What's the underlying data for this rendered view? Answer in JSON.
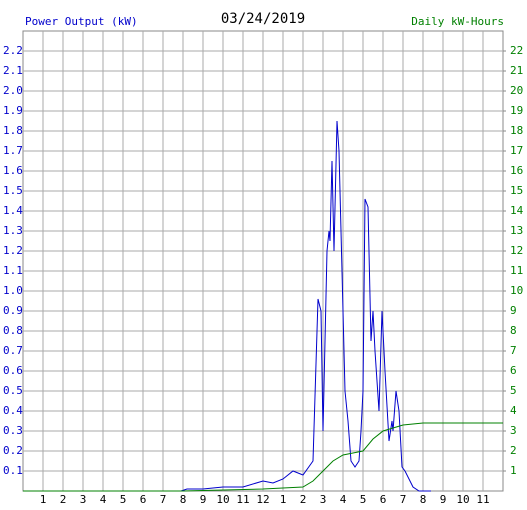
{
  "chart_data": {
    "type": "line",
    "title": "03/24/2019",
    "y_label": "Power Output (kW)",
    "y2_label": "Daily kW-Hours",
    "xlim": [
      0,
      24
    ],
    "xticks": [
      1,
      2,
      3,
      4,
      5,
      6,
      7,
      8,
      9,
      10,
      11,
      12,
      {
        "value": 13,
        "label": "1"
      },
      {
        "value": 14,
        "label": "2"
      },
      {
        "value": 15,
        "label": "3"
      },
      {
        "value": 16,
        "label": "4"
      },
      {
        "value": 17,
        "label": "5"
      },
      {
        "value": 18,
        "label": "6"
      },
      {
        "value": 19,
        "label": "7"
      },
      {
        "value": 20,
        "label": "8"
      },
      {
        "value": 21,
        "label": "9"
      },
      {
        "value": 22,
        "label": "10"
      },
      {
        "value": 23,
        "label": "11"
      }
    ],
    "ylim": [
      0,
      2.3
    ],
    "yticks": [
      0.1,
      0.2,
      0.3,
      0.4,
      0.5,
      0.6,
      0.7,
      0.8,
      0.9,
      {
        "value": 1,
        "label": "1.0"
      },
      1.1,
      1.2,
      1.3,
      1.4,
      1.5,
      1.6,
      1.7,
      1.8,
      1.9,
      {
        "value": 2,
        "label": "2.0"
      },
      2.1,
      2.2
    ],
    "y2lim": [
      0,
      23
    ],
    "y2ticks": [
      1,
      2,
      3,
      4,
      5,
      6,
      7,
      8,
      9,
      10,
      11,
      12,
      13,
      14,
      15,
      16,
      17,
      18,
      19,
      20,
      21,
      22
    ],
    "grid": true,
    "series": [
      {
        "color": "#0000cc",
        "x": [
          0,
          7.9,
          8.2,
          9,
          10,
          11,
          12,
          12.5,
          13,
          13.5,
          14,
          14.5,
          14.75,
          14.9,
          15,
          15.2,
          15.3,
          15.35,
          15.45,
          15.55,
          15.7,
          15.8,
          16,
          16.1,
          16.25,
          16.4,
          16.6,
          16.8,
          16.9,
          17,
          17.1,
          17.25,
          17.4,
          17.5,
          17.6,
          17.8,
          17.95,
          18.1,
          18.3,
          18.45,
          18.5,
          18.65,
          18.8,
          18.95,
          19.1,
          19.3,
          19.5,
          19.8,
          20.4
        ],
        "values": [
          0,
          0,
          0.01,
          0.01,
          0.02,
          0.02,
          0.05,
          0.04,
          0.06,
          0.1,
          0.08,
          0.15,
          0.96,
          0.9,
          0.3,
          1.2,
          1.3,
          1.25,
          1.65,
          1.2,
          1.85,
          1.7,
          0.9,
          0.5,
          0.35,
          0.15,
          0.12,
          0.15,
          0.3,
          0.5,
          1.46,
          1.42,
          0.75,
          0.9,
          0.7,
          0.4,
          0.9,
          0.6,
          0.25,
          0.35,
          0.3,
          0.5,
          0.4,
          0.12,
          0.1,
          0.06,
          0.02,
          0,
          0
        ]
      },
      {
        "color": "#008000",
        "axis": "y2",
        "x": [
          0,
          8,
          10,
          12,
          13,
          14,
          14.5,
          15,
          15.5,
          16,
          16.5,
          17,
          17.5,
          18,
          18.5,
          19,
          19.5,
          20,
          24
        ],
        "values": [
          0,
          0,
          0.05,
          0.1,
          0.15,
          0.2,
          0.5,
          1.0,
          1.5,
          1.8,
          1.9,
          2.0,
          2.6,
          3.0,
          3.15,
          3.3,
          3.35,
          3.4,
          3.4
        ]
      }
    ]
  }
}
